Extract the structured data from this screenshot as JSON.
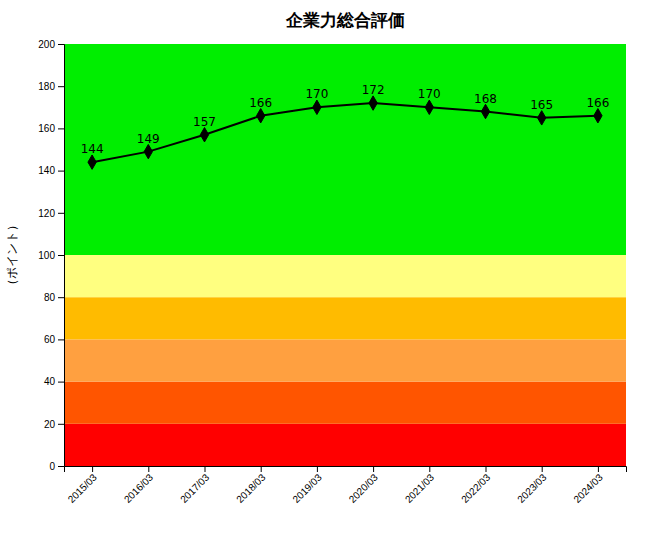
{
  "chart_data": {
    "type": "line",
    "title": "企業力総合評価",
    "ylabel": "（ポイント）",
    "categories": [
      "2015/03",
      "2016/03",
      "2017/03",
      "2018/03",
      "2019/03",
      "2020/03",
      "2021/03",
      "2022/03",
      "2023/03",
      "2024/03"
    ],
    "values": [
      144,
      149,
      157,
      166,
      170,
      172,
      170,
      168,
      165,
      166
    ],
    "color": "#000000",
    "marker": "diamond",
    "data_labels": true,
    "grid": false,
    "ylim": [
      0,
      200
    ],
    "yticks": [
      0,
      20,
      40,
      60,
      80,
      100,
      120,
      140,
      160,
      180,
      200
    ],
    "bands": [
      {
        "ymin": 0,
        "ymax": 20,
        "color": "#FF0000"
      },
      {
        "ymin": 20,
        "ymax": 40,
        "color": "#FF5500"
      },
      {
        "ymin": 40,
        "ymax": 60,
        "color": "#FFA040"
      },
      {
        "ymin": 60,
        "ymax": 80,
        "color": "#FFBB00"
      },
      {
        "ymin": 80,
        "ymax": 100,
        "color": "#FFFF80"
      },
      {
        "ymin": 100,
        "ymax": 200,
        "color": "#00EE00"
      }
    ]
  }
}
